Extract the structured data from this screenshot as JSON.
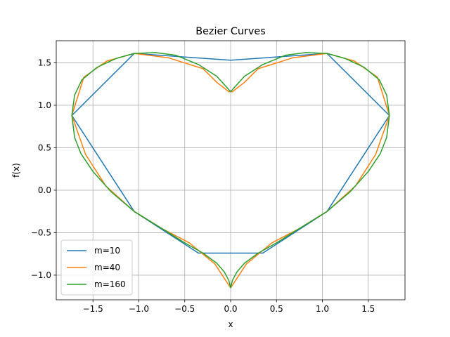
{
  "chart_data": {
    "type": "line",
    "title": "Bezier Curves",
    "xlabel": "x",
    "ylabel": "f(x)",
    "xlim": [
      -1.9,
      1.9
    ],
    "ylim": [
      -1.29,
      1.76
    ],
    "xticks": [
      -1.5,
      -1.0,
      -0.5,
      0.0,
      0.5,
      1.0,
      1.5
    ],
    "xtick_labels": [
      "−1.5",
      "−1.0",
      "−0.5",
      "0.0",
      "0.5",
      "1.0",
      "1.5"
    ],
    "yticks": [
      -1.0,
      -0.5,
      0.0,
      0.5,
      1.0,
      1.5
    ],
    "ytick_labels": [
      "−1.0",
      "−0.5",
      "0.0",
      "0.5",
      "1.0",
      "1.5"
    ],
    "grid": true,
    "legend_position": "lower-left",
    "series": [
      {
        "name": "m=10",
        "color": "#1f77b4",
        "x": [
          0.0,
          -0.35,
          -1.05,
          -1.73,
          -1.05,
          0.0,
          1.05,
          1.73,
          1.05,
          0.35,
          0.0
        ],
        "y": [
          -0.74,
          -0.74,
          -0.25,
          0.88,
          1.61,
          1.53,
          1.61,
          0.88,
          -0.25,
          -0.74,
          -0.74
        ]
      },
      {
        "name": "m=40",
        "color": "#ff7f0e",
        "x": [
          0.0,
          -0.17,
          -0.45,
          -0.75,
          -1.05,
          -1.36,
          -1.58,
          -1.73,
          -1.6,
          -1.35,
          -1.05,
          -0.68,
          -0.3,
          -0.15,
          -0.02,
          0.02,
          0.15,
          0.3,
          0.68,
          1.05,
          1.35,
          1.6,
          1.73,
          1.58,
          1.36,
          1.05,
          0.75,
          0.45,
          0.17,
          0.0
        ],
        "y": [
          -1.15,
          -0.87,
          -0.62,
          -0.45,
          -0.25,
          0.05,
          0.42,
          0.88,
          1.33,
          1.52,
          1.61,
          1.56,
          1.43,
          1.27,
          1.16,
          1.16,
          1.27,
          1.43,
          1.56,
          1.61,
          1.52,
          1.33,
          0.88,
          0.42,
          0.05,
          -0.25,
          -0.45,
          -0.62,
          -0.87,
          -1.15
        ]
      },
      {
        "name": "m=160",
        "color": "#2ca02c",
        "x": [
          0.0,
          -0.02,
          -0.07,
          -0.15,
          -0.3,
          -0.5,
          -0.75,
          -1.05,
          -1.3,
          -1.5,
          -1.63,
          -1.7,
          -1.73,
          -1.7,
          -1.62,
          -1.45,
          -1.25,
          -1.05,
          -0.82,
          -0.6,
          -0.35,
          -0.15,
          -0.05,
          0.0,
          0.05,
          0.15,
          0.35,
          0.6,
          0.82,
          1.05,
          1.25,
          1.45,
          1.62,
          1.7,
          1.73,
          1.7,
          1.63,
          1.5,
          1.3,
          1.05,
          0.75,
          0.5,
          0.3,
          0.15,
          0.07,
          0.02,
          0.0
        ],
        "y": [
          -1.15,
          -1.06,
          -0.96,
          -0.86,
          -0.74,
          -0.62,
          -0.45,
          -0.25,
          -0.02,
          0.22,
          0.43,
          0.62,
          0.88,
          1.12,
          1.3,
          1.45,
          1.55,
          1.61,
          1.62,
          1.59,
          1.48,
          1.34,
          1.22,
          1.16,
          1.22,
          1.34,
          1.48,
          1.59,
          1.62,
          1.61,
          1.55,
          1.45,
          1.3,
          1.12,
          0.88,
          0.62,
          0.43,
          0.22,
          -0.02,
          -0.25,
          -0.45,
          -0.62,
          -0.74,
          -0.86,
          -0.96,
          -1.06,
          -1.15
        ]
      }
    ]
  }
}
